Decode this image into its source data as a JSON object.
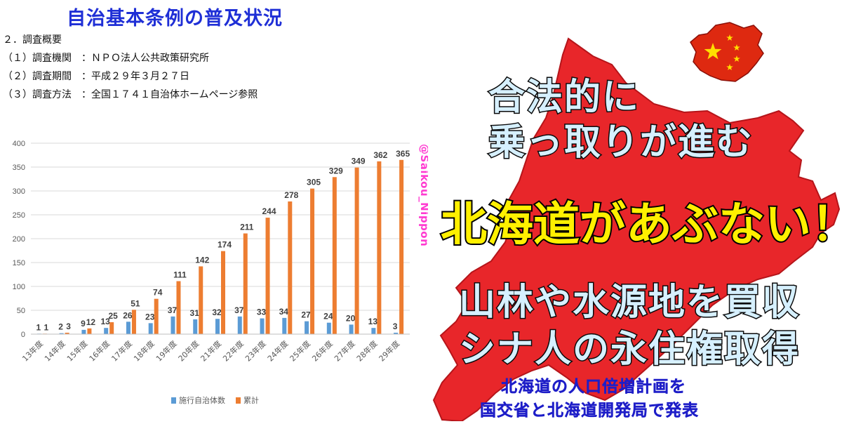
{
  "header": {
    "title": "自治基本条例の普及状況",
    "outline": [
      "２．調査概要",
      "（１）調査機関　：ＮＰＯ法人公共政策研究所",
      "（２）調査期間　：平成２９年３月２７日",
      "（３）調査方法　：全国１７４１自治体ホームページ参照"
    ]
  },
  "watermark": "@Saikou_Nippon",
  "chart_data": {
    "type": "bar",
    "categories": [
      "13年度",
      "14年度",
      "15年度",
      "16年度",
      "17年度",
      "18年度",
      "19年度",
      "20年度",
      "21年度",
      "22年度",
      "23年度",
      "24年度",
      "25年度",
      "26年度",
      "27年度",
      "28年度",
      "29年度"
    ],
    "series": [
      {
        "name": "施行自治体数",
        "values": [
          1,
          2,
          9,
          13,
          26,
          23,
          37,
          31,
          32,
          37,
          33,
          34,
          27,
          24,
          20,
          13,
          3
        ],
        "color": "#5b9bd5"
      },
      {
        "name": "累計",
        "values": [
          1,
          3,
          12,
          25,
          51,
          74,
          111,
          142,
          174,
          211,
          244,
          278,
          305,
          329,
          349,
          362,
          365
        ],
        "color": "#ed7d31"
      }
    ],
    "yticks": [
      "0",
      "50",
      "100",
      "150",
      "200",
      "250",
      "300",
      "350",
      "400"
    ],
    "ylim": [
      0,
      400
    ],
    "grid": true,
    "legend": "bottom"
  },
  "poster": {
    "line1": "合法的に",
    "line2": "乗っ取りが進む",
    "headline": "北海道があぶない！",
    "line3": "山林や水源地を買収",
    "line4": "シナ人の永住権取得",
    "caption1": "北海道の人口倍増計画を",
    "caption2": "国交省と北海道開発局で発表",
    "map_color": "#e8262a",
    "flag_color": "#de2910",
    "star_color": "#ffde00",
    "flag_icon": "china-flag-map-icon",
    "map_icon": "hokkaido-map-icon"
  }
}
